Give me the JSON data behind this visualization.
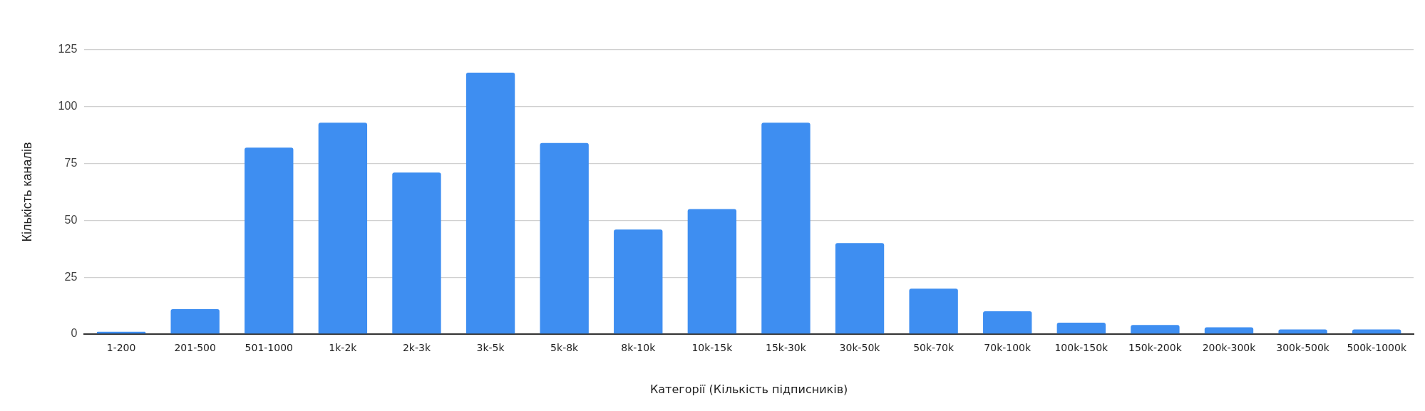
{
  "chart_data": {
    "type": "bar",
    "xlabel": "Категорії (Кількість підписників)",
    "ylabel": "Кількість каналів",
    "categories": [
      "1-200",
      "201-500",
      "501-1000",
      "1k-2k",
      "2k-3k",
      "3k-5k",
      "5k-8k",
      "8k-10k",
      "10k-15k",
      "15k-30k",
      "30k-50k",
      "50k-70k",
      "70k-100k",
      "100k-150k",
      "150k-200k",
      "200k-300k",
      "300k-500k",
      "500k-1000k"
    ],
    "values": [
      1,
      11,
      82,
      93,
      71,
      115,
      84,
      46,
      55,
      93,
      40,
      20,
      10,
      5,
      4,
      3,
      2,
      2
    ],
    "color": "#3e8ef1",
    "ylim": [
      0,
      125
    ],
    "yticks": [
      0,
      25,
      50,
      75,
      100,
      125
    ],
    "grid": "y"
  }
}
